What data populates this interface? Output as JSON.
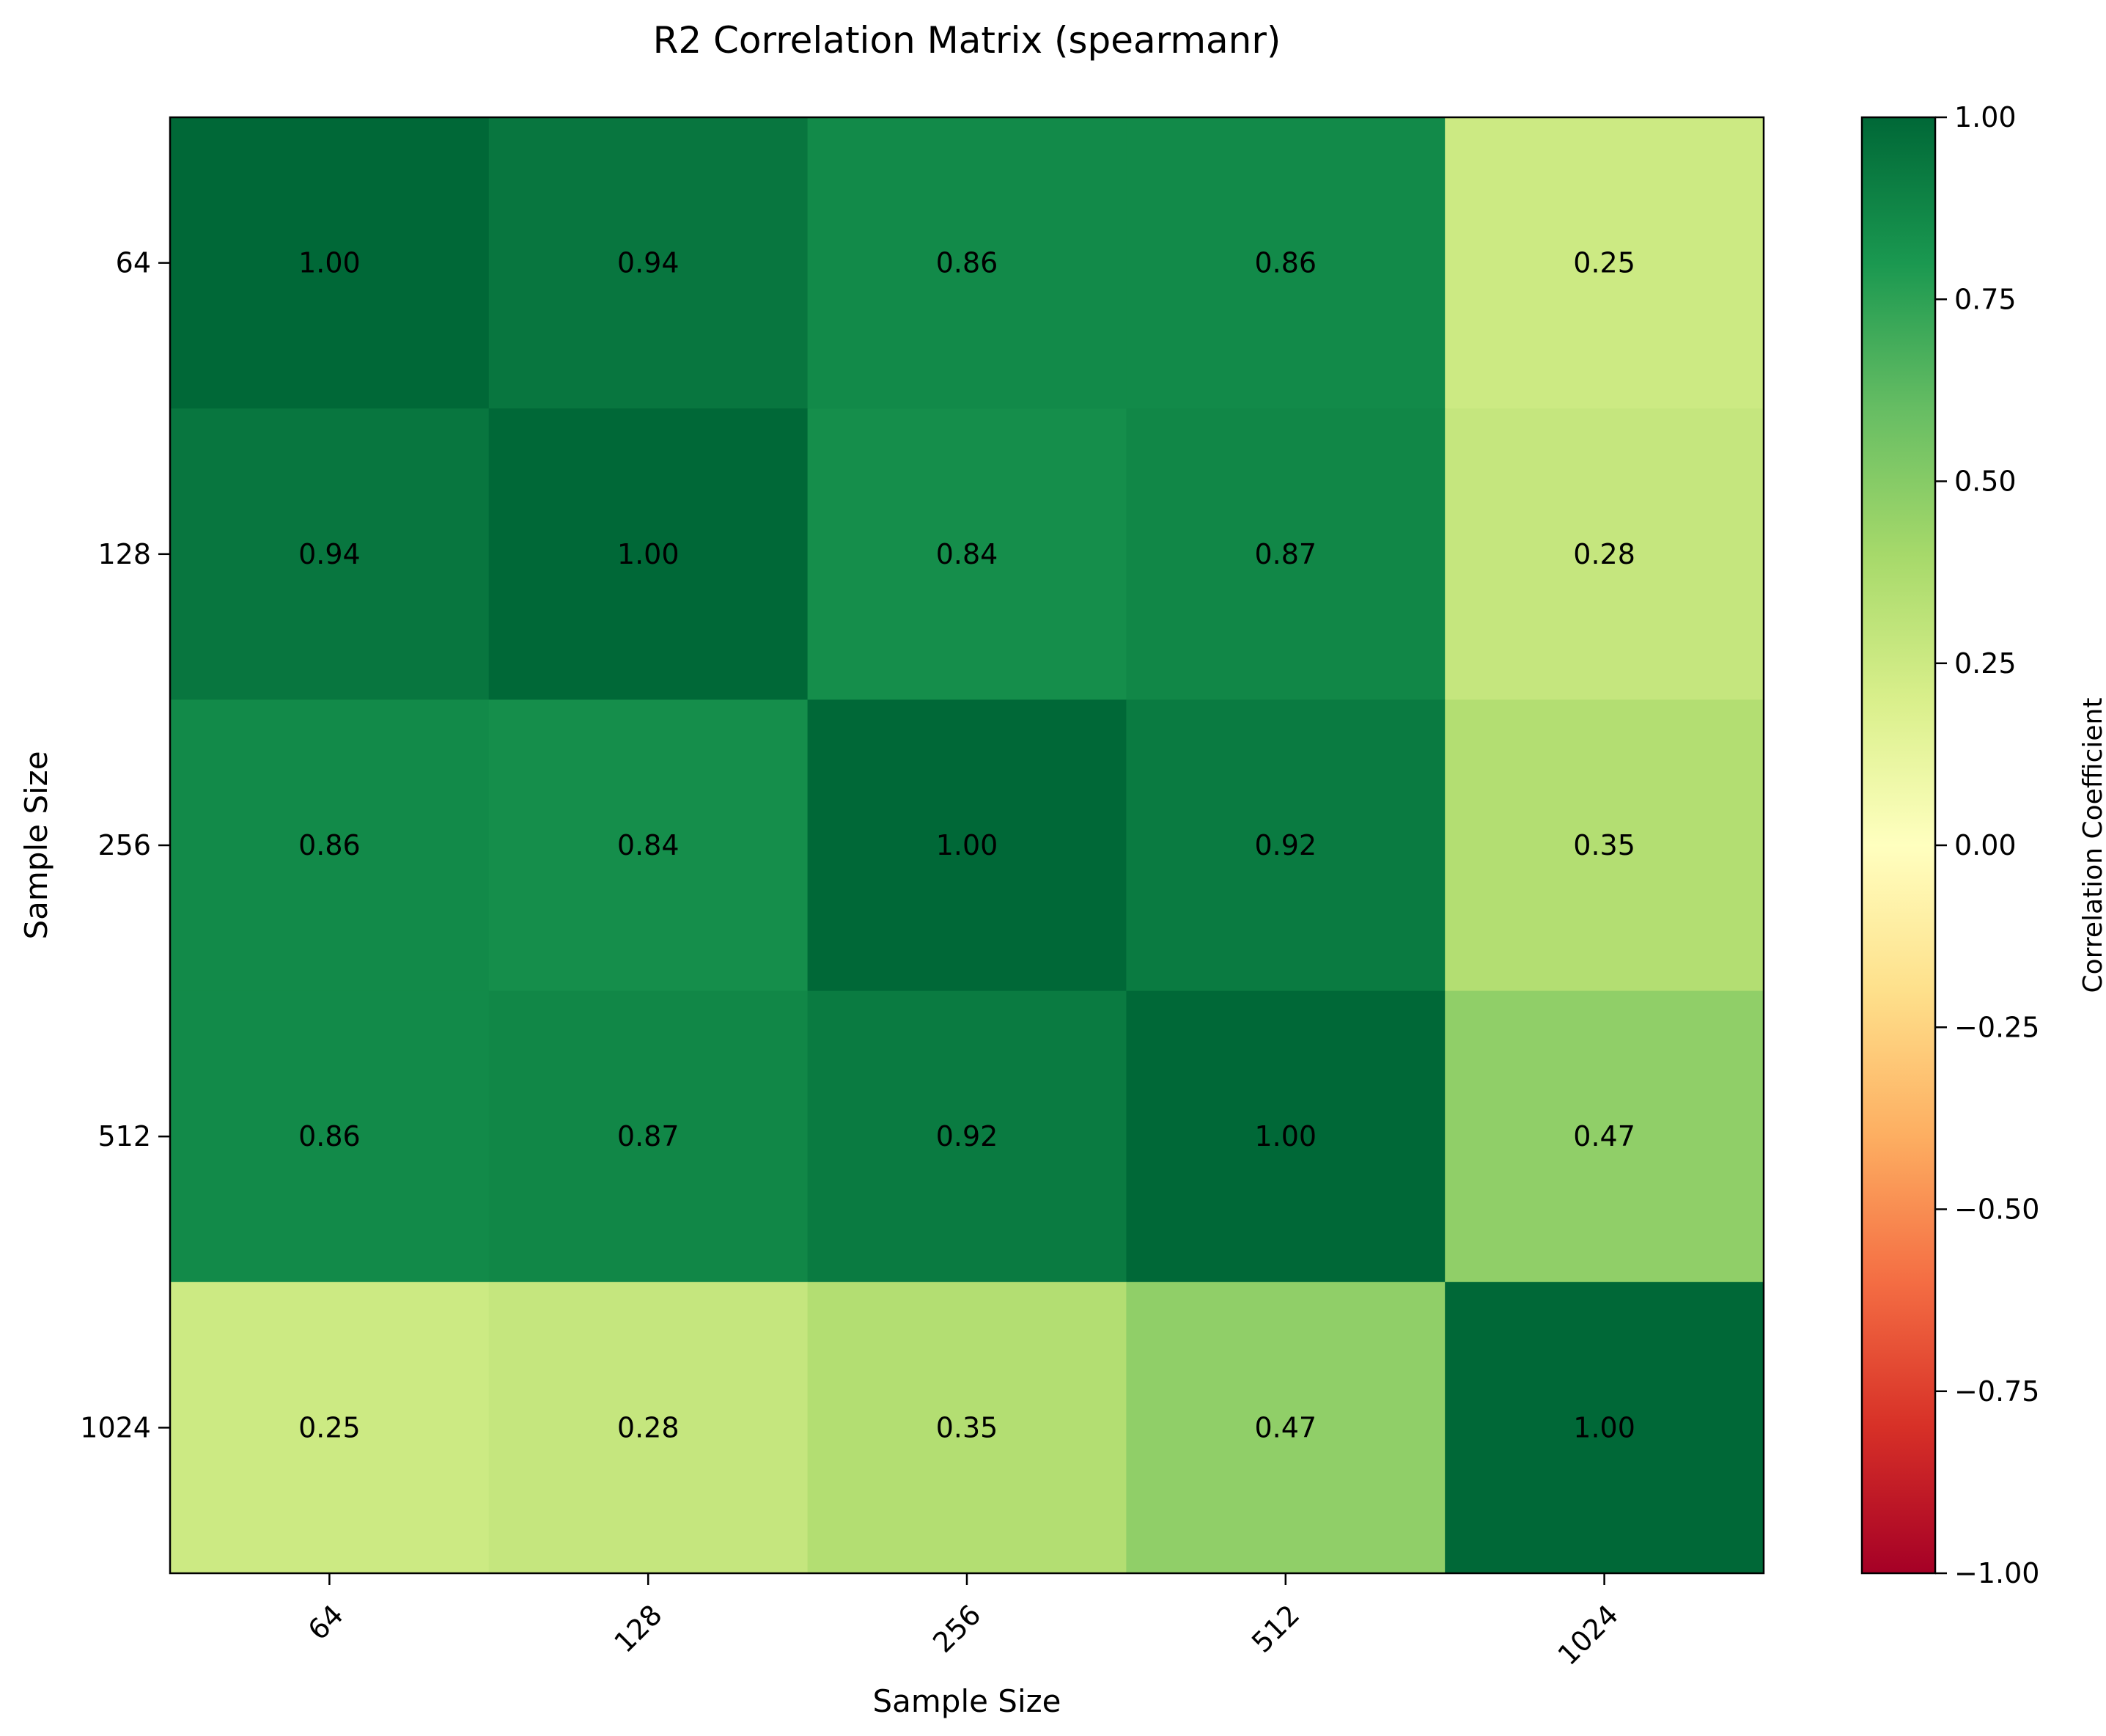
{
  "chart_data": {
    "type": "heatmap",
    "title": "R2 Correlation Matrix (spearmanr)",
    "xlabel": "Sample Size",
    "ylabel": "Sample Size",
    "x_categories": [
      "64",
      "128",
      "256",
      "512",
      "1024"
    ],
    "y_categories": [
      "64",
      "128",
      "256",
      "512",
      "1024"
    ],
    "values": [
      [
        1.0,
        0.94,
        0.86,
        0.86,
        0.25
      ],
      [
        0.94,
        1.0,
        0.84,
        0.87,
        0.28
      ],
      [
        0.86,
        0.84,
        1.0,
        0.92,
        0.35
      ],
      [
        0.86,
        0.87,
        0.92,
        1.0,
        0.47
      ],
      [
        0.25,
        0.28,
        0.35,
        0.47,
        1.0
      ]
    ],
    "value_labels": [
      [
        "1.00",
        "0.94",
        "0.86",
        "0.86",
        "0.25"
      ],
      [
        "0.94",
        "1.00",
        "0.84",
        "0.87",
        "0.28"
      ],
      [
        "0.86",
        "0.84",
        "1.00",
        "0.92",
        "0.35"
      ],
      [
        "0.86",
        "0.87",
        "0.92",
        "1.00",
        "0.47"
      ],
      [
        "0.25",
        "0.28",
        "0.35",
        "0.47",
        "1.00"
      ]
    ],
    "colormap": "RdYlGn",
    "vmin": -1.0,
    "vmax": 1.0,
    "colorbar": {
      "label": "Correlation Coefficient",
      "ticks": [
        1.0,
        0.75,
        0.5,
        0.25,
        0.0,
        -0.25,
        -0.5,
        -0.75,
        -1.0
      ],
      "tick_labels": [
        "1.00",
        "0.75",
        "0.50",
        "0.25",
        "0.00",
        "−0.25",
        "−0.50",
        "−0.75",
        "−1.00"
      ]
    },
    "x_tick_rotation": "45 degrees",
    "grid": false
  }
}
